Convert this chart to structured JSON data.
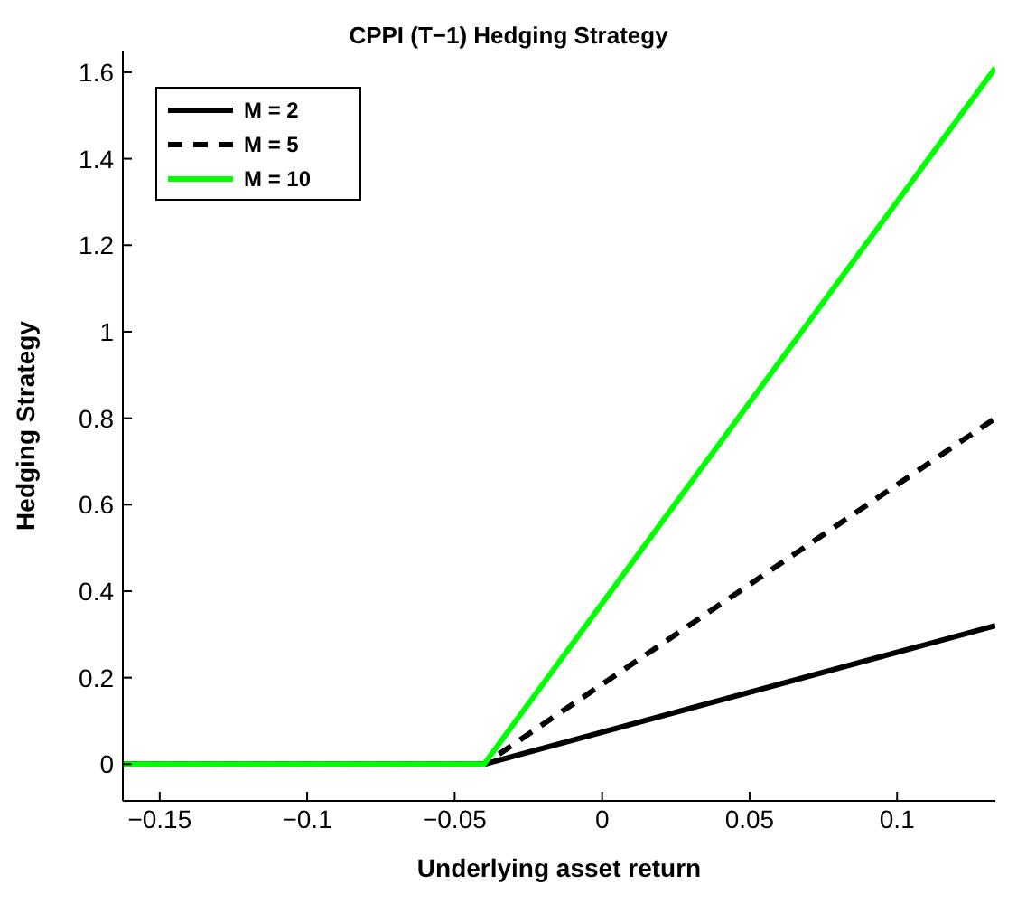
{
  "chart_data": {
    "type": "line",
    "title": "CPPI (T−1) Hedging Strategy",
    "xlabel": "Underlying asset return",
    "ylabel": "Hedging Strategy",
    "x": [
      -0.1625,
      -0.04,
      0.1333
    ],
    "series": [
      {
        "name": "M = 2",
        "color": "#000000",
        "line_style": "solid",
        "values": [
          0,
          0,
          0.32
        ]
      },
      {
        "name": "M = 5",
        "color": "#000000",
        "line_style": "dashed",
        "values": [
          0,
          0,
          0.8
        ]
      },
      {
        "name": "M = 10",
        "color": "#00ff00",
        "line_style": "solid",
        "values": [
          0,
          0,
          1.61
        ]
      }
    ],
    "xlim": [
      -0.1625,
      0.1333
    ],
    "xticks": [
      {
        "value": -0.15,
        "label": "−0.15"
      },
      {
        "value": -0.1,
        "label": "−0.1"
      },
      {
        "value": -0.05,
        "label": "−0.05"
      },
      0,
      0.05,
      0.1
    ],
    "ylim": [
      -0.085,
      1.65
    ],
    "yticks": [
      0,
      0.2,
      0.4,
      0.6,
      0.8,
      1,
      1.2,
      1.4,
      1.6
    ],
    "grid": false,
    "legend": "top left",
    "marker": "none"
  }
}
